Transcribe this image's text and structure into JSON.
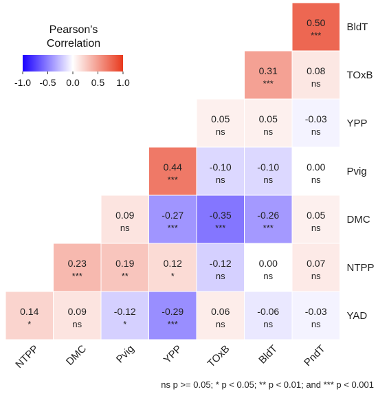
{
  "chart_data": {
    "type": "heatmap",
    "title": "",
    "rows": [
      "BldT",
      "TOxB",
      "YPP",
      "Pvig",
      "DMC",
      "NTPP",
      "YAD"
    ],
    "columns": [
      "NTPP",
      "DMC",
      "Pvig",
      "YPP",
      "TOxB",
      "BldT",
      "PndT"
    ],
    "cells": [
      {
        "row": "BldT",
        "col": "PndT",
        "value": 0.5,
        "label": "0.50",
        "sig": "***"
      },
      {
        "row": "TOxB",
        "col": "BldT",
        "value": 0.31,
        "label": "0.31",
        "sig": "***"
      },
      {
        "row": "TOxB",
        "col": "PndT",
        "value": 0.08,
        "label": "0.08",
        "sig": "ns"
      },
      {
        "row": "YPP",
        "col": "TOxB",
        "value": 0.05,
        "label": "0.05",
        "sig": "ns"
      },
      {
        "row": "YPP",
        "col": "BldT",
        "value": 0.05,
        "label": "0.05",
        "sig": "ns"
      },
      {
        "row": "YPP",
        "col": "PndT",
        "value": -0.03,
        "label": "-0.03",
        "sig": "ns"
      },
      {
        "row": "Pvig",
        "col": "YPP",
        "value": 0.44,
        "label": "0.44",
        "sig": "***"
      },
      {
        "row": "Pvig",
        "col": "TOxB",
        "value": -0.1,
        "label": "-0.10",
        "sig": "ns"
      },
      {
        "row": "Pvig",
        "col": "BldT",
        "value": -0.1,
        "label": "-0.10",
        "sig": "ns"
      },
      {
        "row": "Pvig",
        "col": "PndT",
        "value": 0.0,
        "label": "0.00",
        "sig": "ns"
      },
      {
        "row": "DMC",
        "col": "Pvig",
        "value": 0.09,
        "label": "0.09",
        "sig": "ns"
      },
      {
        "row": "DMC",
        "col": "YPP",
        "value": -0.27,
        "label": "-0.27",
        "sig": "***"
      },
      {
        "row": "DMC",
        "col": "TOxB",
        "value": -0.35,
        "label": "-0.35",
        "sig": "***"
      },
      {
        "row": "DMC",
        "col": "BldT",
        "value": -0.26,
        "label": "-0.26",
        "sig": "***"
      },
      {
        "row": "DMC",
        "col": "PndT",
        "value": 0.05,
        "label": "0.05",
        "sig": "ns"
      },
      {
        "row": "NTPP",
        "col": "DMC",
        "value": 0.23,
        "label": "0.23",
        "sig": "***"
      },
      {
        "row": "NTPP",
        "col": "Pvig",
        "value": 0.19,
        "label": "0.19",
        "sig": "**"
      },
      {
        "row": "NTPP",
        "col": "YPP",
        "value": 0.12,
        "label": "0.12",
        "sig": "*"
      },
      {
        "row": "NTPP",
        "col": "TOxB",
        "value": -0.12,
        "label": "-0.12",
        "sig": "ns"
      },
      {
        "row": "NTPP",
        "col": "BldT",
        "value": 0.0,
        "label": "0.00",
        "sig": "ns"
      },
      {
        "row": "NTPP",
        "col": "PndT",
        "value": 0.07,
        "label": "0.07",
        "sig": "ns"
      },
      {
        "row": "YAD",
        "col": "NTPP",
        "value": 0.14,
        "label": "0.14",
        "sig": "*"
      },
      {
        "row": "YAD",
        "col": "DMC",
        "value": 0.09,
        "label": "0.09",
        "sig": "ns"
      },
      {
        "row": "YAD",
        "col": "Pvig",
        "value": -0.12,
        "label": "-0.12",
        "sig": "*"
      },
      {
        "row": "YAD",
        "col": "YPP",
        "value": -0.29,
        "label": "-0.29",
        "sig": "***"
      },
      {
        "row": "YAD",
        "col": "TOxB",
        "value": 0.06,
        "label": "0.06",
        "sig": "ns"
      },
      {
        "row": "YAD",
        "col": "BldT",
        "value": -0.06,
        "label": "-0.06",
        "sig": "ns"
      },
      {
        "row": "YAD",
        "col": "PndT",
        "value": -0.03,
        "label": "-0.03",
        "sig": "ns"
      }
    ],
    "legend": {
      "title_line1": "Pearson's",
      "title_line2": "Correlation",
      "range": [
        -1.0,
        1.0
      ],
      "ticks": [
        "-1.0",
        "-0.5",
        "0.0",
        "0.5",
        "1.0"
      ],
      "placement": "top-left"
    },
    "colors": {
      "negative": "#1a00ff",
      "neutral": "#ffffff",
      "positive": "#e8391d"
    },
    "footnote": "ns p >= 0.05; * p < 0.05; ** p < 0.01; and *** p < 0.001"
  }
}
